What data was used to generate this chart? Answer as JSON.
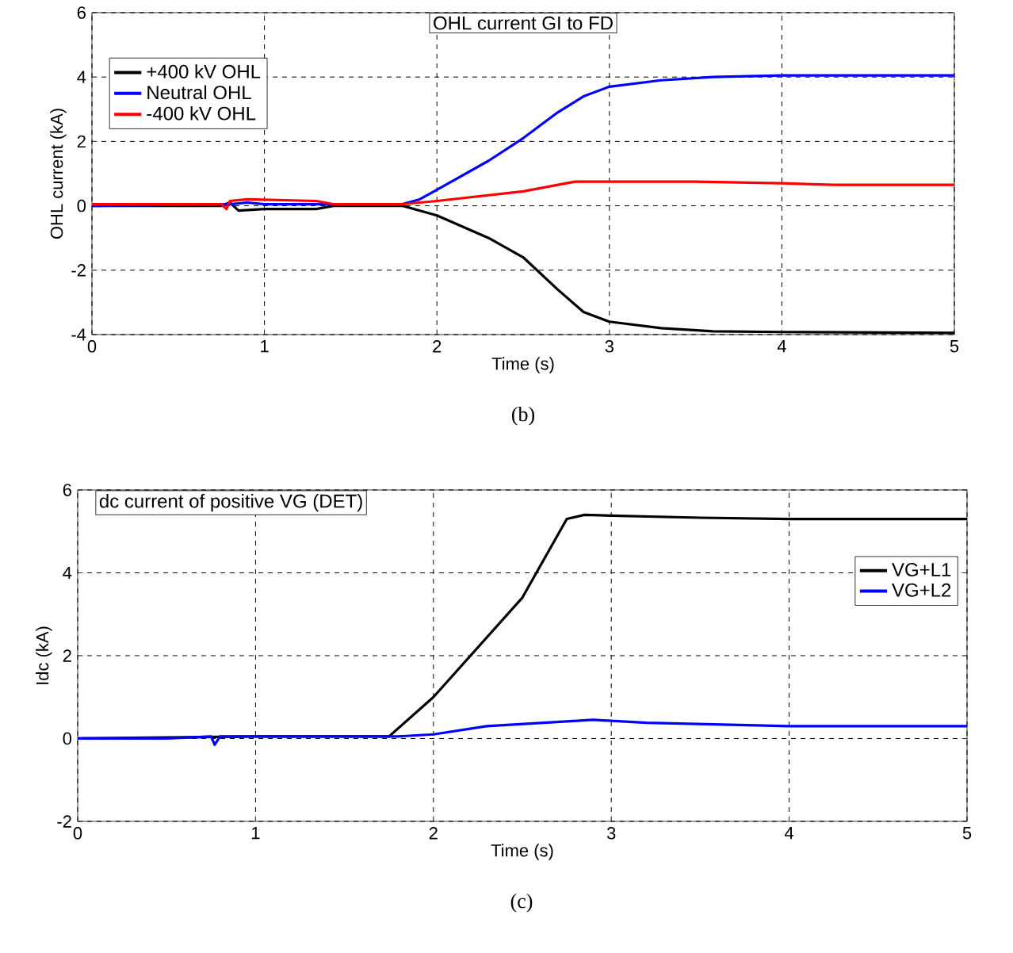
{
  "chart_data": [
    {
      "type": "line",
      "title": "OHL current GI to FD",
      "xlabel": "Time (s)",
      "ylabel": "OHL current (kA)",
      "annotations": [
        "(b)"
      ],
      "xlim": [
        0,
        5
      ],
      "ylim": [
        -4,
        6
      ],
      "xticks": [
        0,
        1,
        2,
        3,
        4,
        5
      ],
      "yticks": [
        -4,
        -2,
        0,
        2,
        4,
        6
      ],
      "grid": true,
      "legend": "top left",
      "series": [
        {
          "name": "+400 kV OHL",
          "color": "#000000",
          "x": [
            0,
            0.75,
            0.8,
            0.85,
            1,
            1.3,
            1.4,
            1.8,
            2,
            2.3,
            2.5,
            2.7,
            2.85,
            3,
            3.3,
            3.6,
            4,
            5
          ],
          "values": [
            0,
            0,
            0.1,
            -0.15,
            -0.1,
            -0.1,
            0,
            0,
            -0.3,
            -1,
            -1.6,
            -2.6,
            -3.3,
            -3.6,
            -3.8,
            -3.9,
            -3.92,
            -3.95
          ]
        },
        {
          "name": "Neutral OHL",
          "color": "#0000ff",
          "x": [
            0,
            0.8,
            0.9,
            1,
            1.8,
            1.9,
            2,
            2.3,
            2.5,
            2.7,
            2.85,
            3,
            3.3,
            3.6,
            4,
            5
          ],
          "values": [
            0,
            0.05,
            0.1,
            0.05,
            0.05,
            0.2,
            0.5,
            1.4,
            2.1,
            2.9,
            3.4,
            3.7,
            3.9,
            4.0,
            4.05,
            4.05
          ]
        },
        {
          "name": "-400 kV OHL",
          "color": "#ff0000",
          "x": [
            0,
            0.75,
            0.78,
            0.8,
            0.9,
            1.3,
            1.4,
            1.8,
            2,
            2.5,
            2.8,
            3,
            3.5,
            4,
            4.3,
            5
          ],
          "values": [
            0.05,
            0.05,
            -0.1,
            0.15,
            0.2,
            0.15,
            0.05,
            0.05,
            0.15,
            0.45,
            0.75,
            0.75,
            0.75,
            0.7,
            0.65,
            0.65
          ]
        }
      ]
    },
    {
      "type": "line",
      "title": "dc current of positive VG (DET)",
      "xlabel": "Time (s)",
      "ylabel": "Idc (kA)",
      "annotations": [
        "(c)"
      ],
      "xlim": [
        0,
        5
      ],
      "ylim": [
        -2,
        6
      ],
      "xticks": [
        0,
        1,
        2,
        3,
        4,
        5
      ],
      "yticks": [
        -2,
        0,
        2,
        4,
        6
      ],
      "grid": true,
      "legend": "right",
      "series": [
        {
          "name": "VG+L1",
          "color": "#000000",
          "x": [
            0,
            1,
            1.5,
            1.75,
            2,
            2.5,
            2.75,
            2.85,
            3,
            3.5,
            4,
            5
          ],
          "values": [
            0,
            0.05,
            0.05,
            0.05,
            1.0,
            3.4,
            5.3,
            5.4,
            5.38,
            5.33,
            5.3,
            5.3
          ]
        },
        {
          "name": "VG+L2",
          "color": "#0000ff",
          "x": [
            0,
            0.5,
            0.75,
            0.77,
            0.8,
            1,
            1.8,
            2,
            2.3,
            2.9,
            3.2,
            4,
            5
          ],
          "values": [
            0,
            0,
            0.05,
            -0.15,
            0.05,
            0.05,
            0.05,
            0.1,
            0.3,
            0.45,
            0.38,
            0.3,
            0.3
          ]
        }
      ]
    }
  ]
}
